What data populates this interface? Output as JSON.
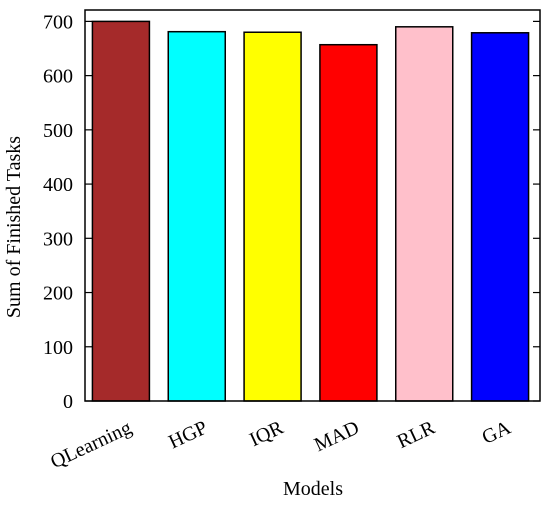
{
  "chart_data": {
    "type": "bar",
    "categories": [
      "QLearning",
      "HGP",
      "IQR",
      "MAD",
      "RLR",
      "GA"
    ],
    "values": [
      700,
      681,
      680,
      657,
      690,
      679
    ],
    "colors": [
      "#a52a2a",
      "#00ffff",
      "#ffff00",
      "#ff0000",
      "#ffc0cb",
      "#0000ff"
    ],
    "xlabel": "Models",
    "ylabel": "Sum of Finished Tasks",
    "ylim": [
      0,
      700
    ],
    "yticks": [
      0,
      100,
      200,
      300,
      400,
      500,
      600,
      700
    ],
    "grid": false,
    "x_tick_rotation_deg": -25
  }
}
